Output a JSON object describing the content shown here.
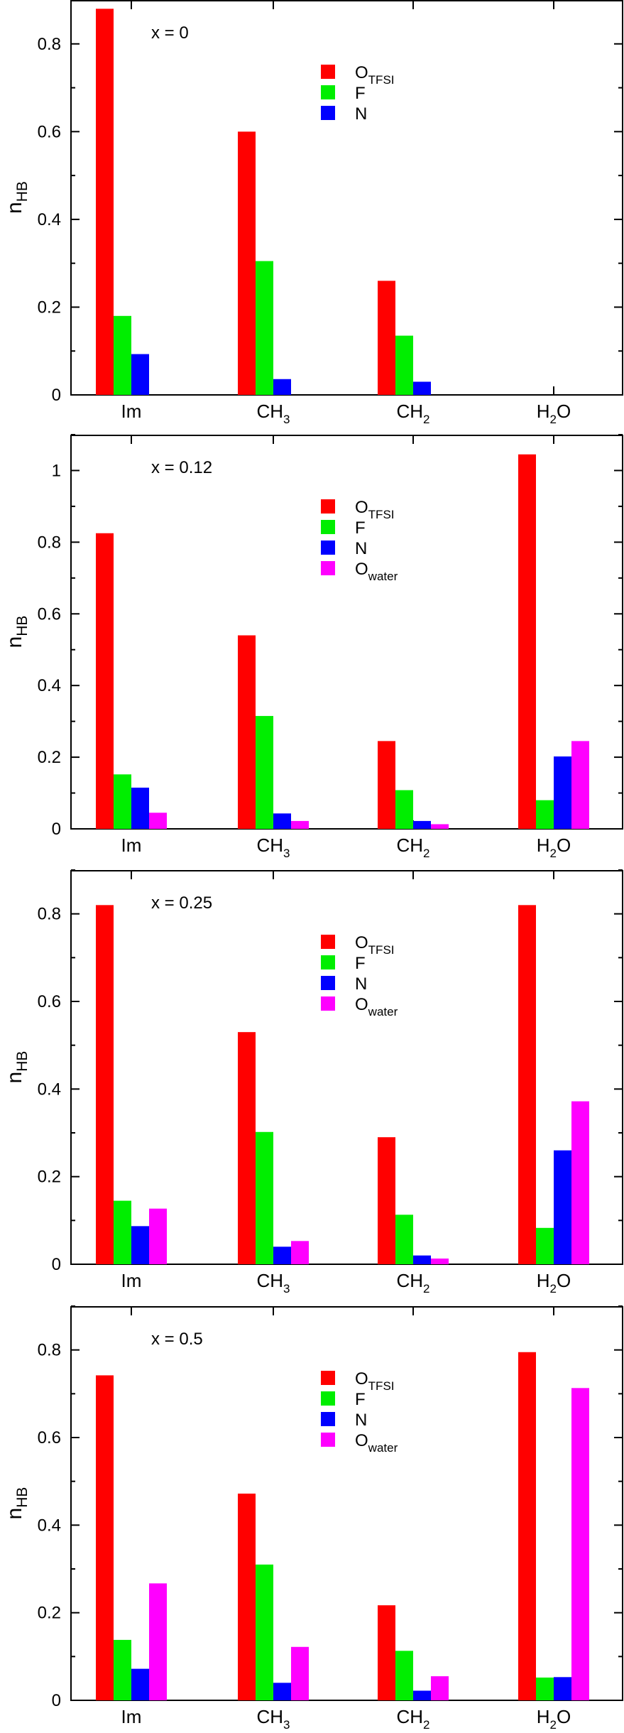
{
  "colors": {
    "O_TFSI": "#ff0000",
    "F": "#00ee00",
    "N": "#0000ff",
    "O_water": "#ff00ff"
  },
  "ylabel": {
    "main": "n",
    "sub": "HB"
  },
  "chart_data": [
    {
      "type": "bar",
      "annotation": "x = 0",
      "categories": [
        {
          "main": "Im",
          "sub": ""
        },
        {
          "main": "CH",
          "sub": "3"
        },
        {
          "main": "CH",
          "sub": "2"
        },
        {
          "main": "H",
          "sub": "2",
          "tail": "O"
        }
      ],
      "ylim": [
        0,
        0.9
      ],
      "yticks": [
        0,
        0.2,
        0.4,
        0.6,
        0.8
      ],
      "yticklabels": [
        "0",
        "0.2",
        "0.4",
        "0.6",
        "0.8"
      ],
      "legend": [
        {
          "main": "O",
          "sub": "TFSI",
          "color_key": "O_TFSI"
        },
        {
          "main": "F",
          "sub": "",
          "color_key": "F"
        },
        {
          "main": "N",
          "sub": "",
          "color_key": "N"
        }
      ],
      "series": [
        {
          "key": "O_TFSI",
          "values": [
            0.88,
            0.6,
            0.26,
            0
          ]
        },
        {
          "key": "F",
          "values": [
            0.18,
            0.305,
            0.135,
            0
          ]
        },
        {
          "key": "N",
          "values": [
            0.093,
            0.036,
            0.03,
            0
          ]
        }
      ]
    },
    {
      "type": "bar",
      "annotation": "x = 0.12",
      "categories": [
        {
          "main": "Im",
          "sub": ""
        },
        {
          "main": "CH",
          "sub": "3"
        },
        {
          "main": "CH",
          "sub": "2"
        },
        {
          "main": "H",
          "sub": "2",
          "tail": "O"
        }
      ],
      "ylim": [
        0,
        1.1
      ],
      "yticks": [
        0,
        0.2,
        0.4,
        0.6,
        0.8,
        1
      ],
      "yticklabels": [
        "0",
        "0.2",
        "0.4",
        "0.6",
        "0.8",
        "1"
      ],
      "legend": [
        {
          "main": "O",
          "sub": "TFSI",
          "color_key": "O_TFSI"
        },
        {
          "main": "F",
          "sub": "",
          "color_key": "F"
        },
        {
          "main": "N",
          "sub": "",
          "color_key": "N"
        },
        {
          "main": "O",
          "sub": "water",
          "color_key": "O_water"
        }
      ],
      "series": [
        {
          "key": "O_TFSI",
          "values": [
            0.825,
            0.54,
            0.245,
            1.045
          ]
        },
        {
          "key": "F",
          "values": [
            0.152,
            0.315,
            0.108,
            0.08
          ]
        },
        {
          "key": "N",
          "values": [
            0.115,
            0.043,
            0.022,
            0.202
          ]
        },
        {
          "key": "O_water",
          "values": [
            0.045,
            0.022,
            0.013,
            0.245
          ]
        }
      ]
    },
    {
      "type": "bar",
      "annotation": "x = 0.25",
      "categories": [
        {
          "main": "Im",
          "sub": ""
        },
        {
          "main": "CH",
          "sub": "3"
        },
        {
          "main": "CH",
          "sub": "2"
        },
        {
          "main": "H",
          "sub": "2",
          "tail": "O"
        }
      ],
      "ylim": [
        0,
        0.9
      ],
      "yticks": [
        0,
        0.2,
        0.4,
        0.6,
        0.8
      ],
      "yticklabels": [
        "0",
        "0.2",
        "0.4",
        "0.6",
        "0.8"
      ],
      "legend": [
        {
          "main": "O",
          "sub": "TFSI",
          "color_key": "O_TFSI"
        },
        {
          "main": "F",
          "sub": "",
          "color_key": "F"
        },
        {
          "main": "N",
          "sub": "",
          "color_key": "N"
        },
        {
          "main": "O",
          "sub": "water",
          "color_key": "O_water"
        }
      ],
      "series": [
        {
          "key": "O_TFSI",
          "values": [
            0.82,
            0.53,
            0.29,
            0.82
          ]
        },
        {
          "key": "F",
          "values": [
            0.145,
            0.302,
            0.113,
            0.083
          ]
        },
        {
          "key": "N",
          "values": [
            0.087,
            0.04,
            0.02,
            0.26
          ]
        },
        {
          "key": "O_water",
          "values": [
            0.127,
            0.053,
            0.013,
            0.372
          ]
        }
      ]
    },
    {
      "type": "bar",
      "annotation": "x = 0.5",
      "categories": [
        {
          "main": "Im",
          "sub": ""
        },
        {
          "main": "CH",
          "sub": "3"
        },
        {
          "main": "CH",
          "sub": "2"
        },
        {
          "main": "H",
          "sub": "2",
          "tail": "O"
        }
      ],
      "ylim": [
        0,
        0.9
      ],
      "yticks": [
        0,
        0.2,
        0.4,
        0.6,
        0.8
      ],
      "yticklabels": [
        "0",
        "0.2",
        "0.4",
        "0.6",
        "0.8"
      ],
      "legend": [
        {
          "main": "O",
          "sub": "TFSI",
          "color_key": "O_TFSI"
        },
        {
          "main": "F",
          "sub": "",
          "color_key": "F"
        },
        {
          "main": "N",
          "sub": "",
          "color_key": "N"
        },
        {
          "main": "O",
          "sub": "water",
          "color_key": "O_water"
        }
      ],
      "series": [
        {
          "key": "O_TFSI",
          "values": [
            0.742,
            0.472,
            0.217,
            0.795
          ]
        },
        {
          "key": "F",
          "values": [
            0.138,
            0.31,
            0.113,
            0.052
          ]
        },
        {
          "key": "N",
          "values": [
            0.072,
            0.04,
            0.022,
            0.053
          ]
        },
        {
          "key": "O_water",
          "values": [
            0.267,
            0.122,
            0.055,
            0.713
          ]
        }
      ]
    }
  ]
}
